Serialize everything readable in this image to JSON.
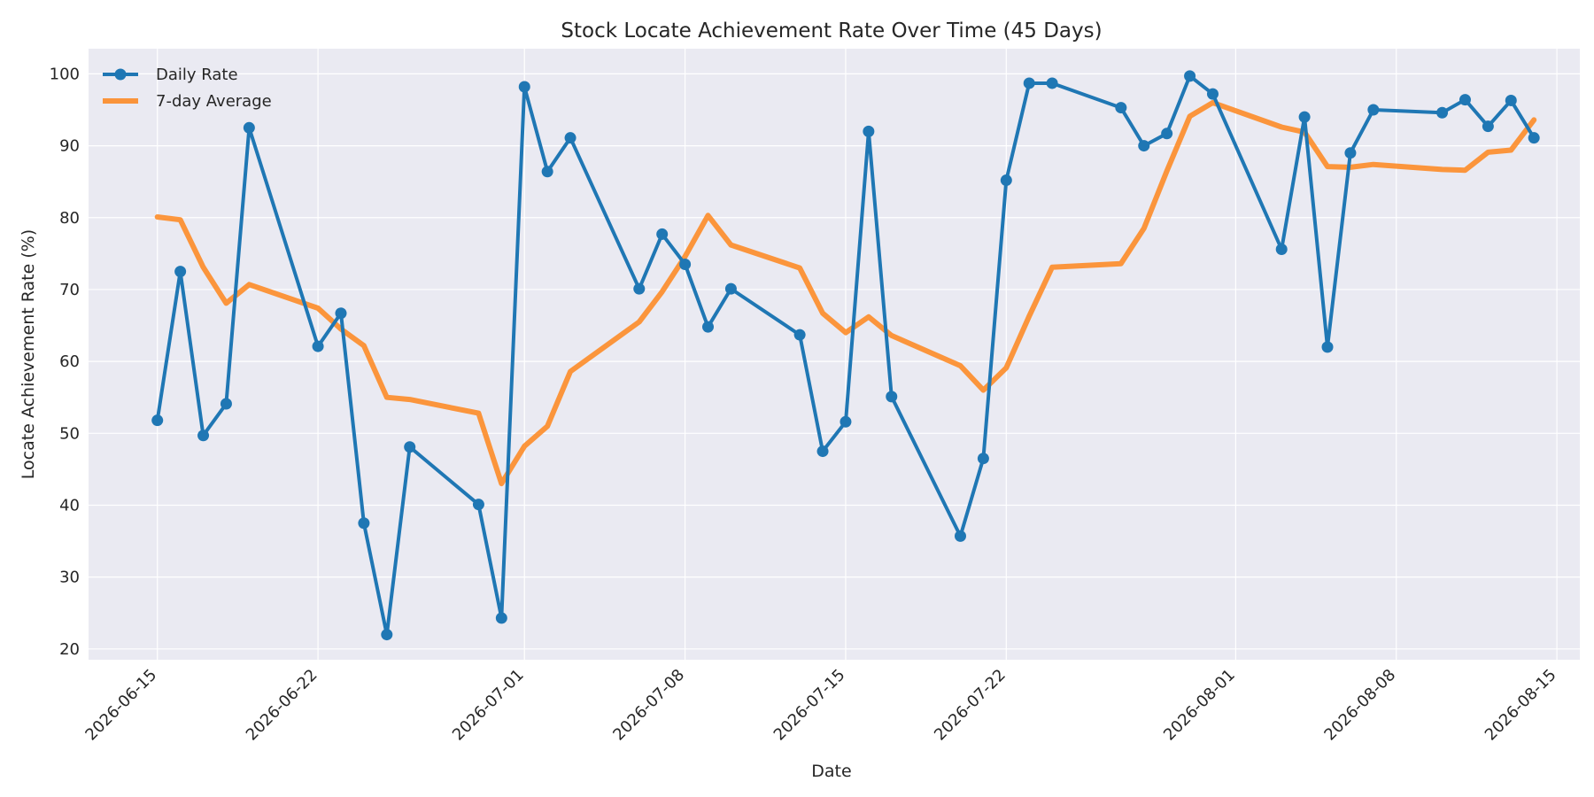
{
  "chart_data": {
    "type": "line",
    "title": "Stock Locate Achievement Rate Over Time (45 Days)",
    "xlabel": "Date",
    "ylabel": "Locate Achievement Rate (%)",
    "xlim": [
      "2026-06-12",
      "2026-08-16"
    ],
    "ylim": [
      18.5,
      103.5
    ],
    "x_ticks": [
      "2026-06-15",
      "2026-06-22",
      "2026-07-01",
      "2026-07-08",
      "2026-07-15",
      "2026-07-22",
      "2026-08-01",
      "2026-08-08",
      "2026-08-15"
    ],
    "y_ticks": [
      20,
      30,
      40,
      50,
      60,
      70,
      80,
      90,
      100
    ],
    "grid": true,
    "legend_position": "upper-left",
    "colors": {
      "daily": "#1f77b4",
      "avg": "#ff7f0e",
      "plot_bg": "#eaeaf2",
      "grid": "#ffffff"
    },
    "series": [
      {
        "name": "Daily Rate",
        "marker": "circle",
        "points": [
          [
            "2026-06-15",
            51.8
          ],
          [
            "2026-06-16",
            72.5
          ],
          [
            "2026-06-17",
            49.7
          ],
          [
            "2026-06-18",
            54.1
          ],
          [
            "2026-06-19",
            92.5
          ],
          [
            "2026-06-22",
            62.1
          ],
          [
            "2026-06-23",
            66.7
          ],
          [
            "2026-06-24",
            37.5
          ],
          [
            "2026-06-25",
            22.0
          ],
          [
            "2026-06-26",
            48.1
          ],
          [
            "2026-06-29",
            40.1
          ],
          [
            "2026-06-30",
            24.3
          ],
          [
            "2026-07-01",
            98.2
          ],
          [
            "2026-07-02",
            86.4
          ],
          [
            "2026-07-03",
            91.1
          ],
          [
            "2026-07-06",
            70.1
          ],
          [
            "2026-07-07",
            77.7
          ],
          [
            "2026-07-08",
            73.5
          ],
          [
            "2026-07-09",
            64.8
          ],
          [
            "2026-07-10",
            70.1
          ],
          [
            "2026-07-13",
            63.7
          ],
          [
            "2026-07-14",
            47.5
          ],
          [
            "2026-07-15",
            51.6
          ],
          [
            "2026-07-16",
            92.0
          ],
          [
            "2026-07-17",
            55.1
          ],
          [
            "2026-07-20",
            35.7
          ],
          [
            "2026-07-21",
            46.5
          ],
          [
            "2026-07-22",
            85.2
          ],
          [
            "2026-07-23",
            98.7
          ],
          [
            "2026-07-24",
            98.7
          ],
          [
            "2026-07-27",
            95.3
          ],
          [
            "2026-07-28",
            90.0
          ],
          [
            "2026-07-29",
            91.7
          ],
          [
            "2026-07-30",
            99.7
          ],
          [
            "2026-07-31",
            97.2
          ],
          [
            "2026-08-03",
            75.6
          ],
          [
            "2026-08-04",
            94.0
          ],
          [
            "2026-08-05",
            62.0
          ],
          [
            "2026-08-06",
            89.0
          ],
          [
            "2026-08-07",
            95.0
          ],
          [
            "2026-08-10",
            94.6
          ],
          [
            "2026-08-11",
            96.4
          ],
          [
            "2026-08-12",
            92.7
          ],
          [
            "2026-08-13",
            96.3
          ],
          [
            "2026-08-14",
            91.1
          ]
        ]
      },
      {
        "name": "7-day Average",
        "marker": "none",
        "points": [
          [
            "2026-06-15",
            80.1
          ],
          [
            "2026-06-16",
            79.7
          ],
          [
            "2026-06-17",
            73.1
          ],
          [
            "2026-06-18",
            68.1
          ],
          [
            "2026-06-19",
            70.7
          ],
          [
            "2026-06-22",
            67.4
          ],
          [
            "2026-06-23",
            64.5
          ],
          [
            "2026-06-24",
            62.2
          ],
          [
            "2026-06-25",
            55.0
          ],
          [
            "2026-06-26",
            54.7
          ],
          [
            "2026-06-29",
            52.8
          ],
          [
            "2026-06-30",
            43.0
          ],
          [
            "2026-07-01",
            48.2
          ],
          [
            "2026-07-02",
            51.0
          ],
          [
            "2026-07-03",
            58.6
          ],
          [
            "2026-07-06",
            65.5
          ],
          [
            "2026-07-07",
            69.7
          ],
          [
            "2026-07-08",
            74.6
          ],
          [
            "2026-07-09",
            80.3
          ],
          [
            "2026-07-10",
            76.2
          ],
          [
            "2026-07-13",
            73.0
          ],
          [
            "2026-07-14",
            66.7
          ],
          [
            "2026-07-15",
            64.0
          ],
          [
            "2026-07-16",
            66.2
          ],
          [
            "2026-07-17",
            63.6
          ],
          [
            "2026-07-20",
            59.4
          ],
          [
            "2026-07-21",
            56.0
          ],
          [
            "2026-07-22",
            59.1
          ],
          [
            "2026-07-23",
            66.3
          ],
          [
            "2026-07-24",
            73.1
          ],
          [
            "2026-07-27",
            73.6
          ],
          [
            "2026-07-28",
            78.5
          ],
          [
            "2026-07-29",
            86.5
          ],
          [
            "2026-07-30",
            94.1
          ],
          [
            "2026-07-31",
            96.0
          ],
          [
            "2026-08-03",
            92.6
          ],
          [
            "2026-08-04",
            91.9
          ],
          [
            "2026-08-05",
            87.1
          ],
          [
            "2026-08-06",
            87.0
          ],
          [
            "2026-08-07",
            87.4
          ],
          [
            "2026-08-10",
            86.7
          ],
          [
            "2026-08-11",
            86.6
          ],
          [
            "2026-08-12",
            89.1
          ],
          [
            "2026-08-13",
            89.4
          ],
          [
            "2026-08-14",
            93.6
          ]
        ]
      }
    ]
  }
}
